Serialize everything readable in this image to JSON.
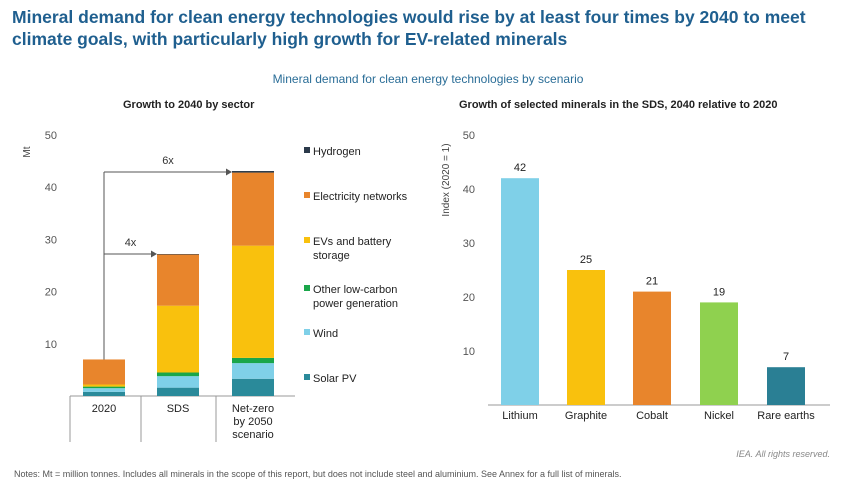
{
  "headline": "Mineral demand for clean energy technologies would rise by at least four times by 2040 to meet climate goals, with particularly high growth for EV-related minerals",
  "subtitle": "Mineral demand for clean energy technologies by scenario",
  "footer_notes": "Notes: Mt = million tonnes. Includes all minerals in the scope of this report, but does not include steel and aluminium. See Annex for a full list of minerals.",
  "footer_credit": "IEA. All rights reserved.",
  "chart_data": [
    {
      "type": "bar",
      "stacked": true,
      "title": "Growth to 2040 by sector",
      "ylabel": "Mt",
      "ylim": [
        0,
        50
      ],
      "yticks": [
        10,
        20,
        30,
        40,
        50
      ],
      "grid": false,
      "legend_position": "right",
      "categories": [
        "2020",
        "SDS",
        "Net-zero by 2050 scenario"
      ],
      "series": [
        {
          "name": "Solar PV",
          "color": "#2a8a9a",
          "values": [
            0.8,
            1.6,
            3.3
          ]
        },
        {
          "name": "Wind",
          "color": "#7fd0e8",
          "values": [
            0.7,
            2.2,
            3.0
          ]
        },
        {
          "name": "Other low-carbon power generation",
          "color": "#1aa64a",
          "values": [
            0.3,
            0.7,
            1.0
          ]
        },
        {
          "name": "EVs and battery storage",
          "color": "#f9c10d",
          "values": [
            0.4,
            12.8,
            21.5
          ]
        },
        {
          "name": "Electricity networks",
          "color": "#e8852c",
          "values": [
            4.8,
            9.8,
            14.0
          ]
        },
        {
          "name": "Hydrogen",
          "color": "#2b3a4a",
          "values": [
            0.0,
            0.1,
            0.3
          ]
        }
      ],
      "legend_order": [
        "Hydrogen",
        "Electricity networks",
        "EVs and battery storage",
        "Other low-carbon power generation",
        "Wind",
        "Solar PV"
      ],
      "annotations": [
        {
          "label": "4x",
          "from": "2020",
          "to": "SDS",
          "level": 27.2
        },
        {
          "label": "6x",
          "from": "2020",
          "to": "Net-zero by 2050 scenario",
          "level": 42.9
        }
      ]
    },
    {
      "type": "bar",
      "title": "Growth of selected minerals in the SDS, 2040 relative to 2020",
      "ylabel": "Index (2020 = 1)",
      "ylim": [
        0,
        50
      ],
      "yticks": [
        10,
        20,
        30,
        40,
        50
      ],
      "grid": false,
      "categories": [
        "Lithium",
        "Graphite",
        "Cobalt",
        "Nickel",
        "Rare earths"
      ],
      "values": [
        42,
        25,
        21,
        19,
        7
      ],
      "colors": [
        "#7fd0e8",
        "#f9c10d",
        "#e8852c",
        "#8fd14f",
        "#2a7f94"
      ],
      "data_labels": [
        "42",
        "25",
        "21",
        "19",
        "7"
      ]
    }
  ]
}
